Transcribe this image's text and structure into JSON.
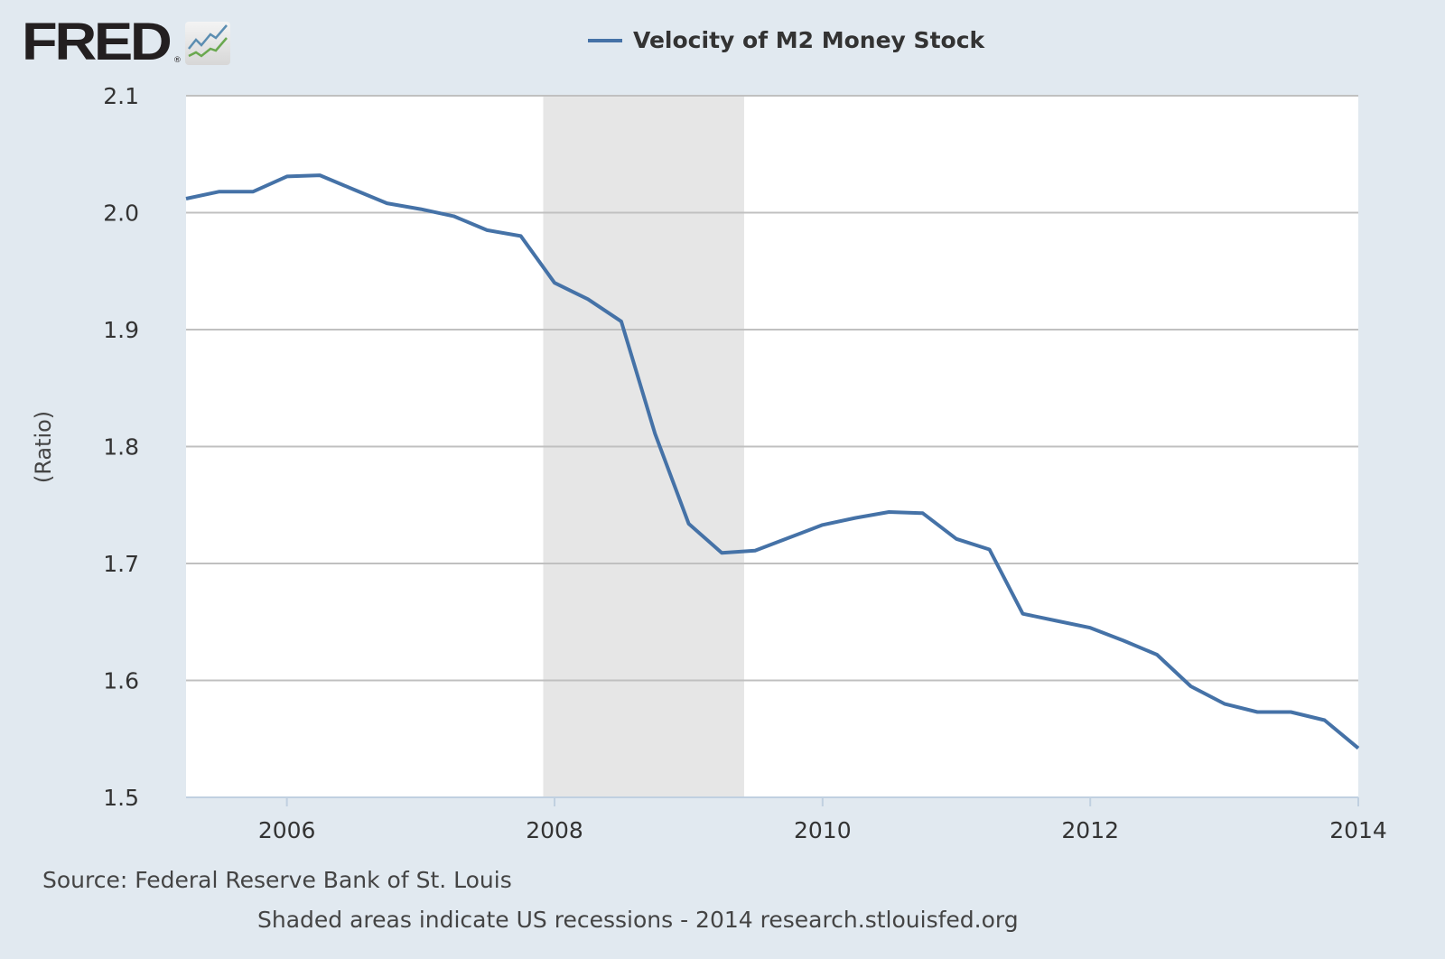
{
  "header": {
    "logo_text": "FRED",
    "logo_icon": "line-chart-icon"
  },
  "chart_data": {
    "type": "line",
    "title": "",
    "ylabel": "(Ratio)",
    "xlabel": "",
    "ylim": [
      1.5,
      2.1
    ],
    "xlim": [
      "2005-04-01",
      "2014-01-01"
    ],
    "grid": true,
    "legend_position": "top-center",
    "x_ticks": [
      "2006",
      "2008",
      "2010",
      "2012",
      "2014"
    ],
    "y_ticks": [
      "1.5",
      "1.6",
      "1.7",
      "1.8",
      "1.9",
      "2.0",
      "2.1"
    ],
    "recessions": [
      {
        "start": "2007-12-01",
        "end": "2009-06-01"
      }
    ],
    "series": [
      {
        "name": "Velocity of M2 Money Stock",
        "color": "#4572a7",
        "x": [
          "2005-04-01",
          "2005-07-01",
          "2005-10-01",
          "2006-01-01",
          "2006-04-01",
          "2006-07-01",
          "2006-10-01",
          "2007-01-01",
          "2007-04-01",
          "2007-07-01",
          "2007-10-01",
          "2008-01-01",
          "2008-04-01",
          "2008-07-01",
          "2008-10-01",
          "2009-01-01",
          "2009-04-01",
          "2009-07-01",
          "2009-10-01",
          "2010-01-01",
          "2010-04-01",
          "2010-07-01",
          "2010-10-01",
          "2011-01-01",
          "2011-04-01",
          "2011-07-01",
          "2011-10-01",
          "2012-01-01",
          "2012-04-01",
          "2012-07-01",
          "2012-10-01",
          "2013-01-01",
          "2013-04-01",
          "2013-07-01",
          "2013-10-01",
          "2014-01-01"
        ],
        "values": [
          2.012,
          2.018,
          2.018,
          2.031,
          2.032,
          2.02,
          2.008,
          2.003,
          1.997,
          1.985,
          1.98,
          1.94,
          1.926,
          1.907,
          1.811,
          1.734,
          1.709,
          1.711,
          1.722,
          1.733,
          1.739,
          1.744,
          1.743,
          1.721,
          1.712,
          1.657,
          1.651,
          1.645,
          1.634,
          1.622,
          1.595,
          1.58,
          1.573,
          1.573,
          1.566,
          1.542
        ]
      }
    ],
    "recession_color": "#e6e6e6"
  },
  "footer": {
    "source": "Source: Federal Reserve Bank of St. Louis",
    "note": "Shaded areas indicate US recessions - 2014 research.stlouisfed.org"
  }
}
